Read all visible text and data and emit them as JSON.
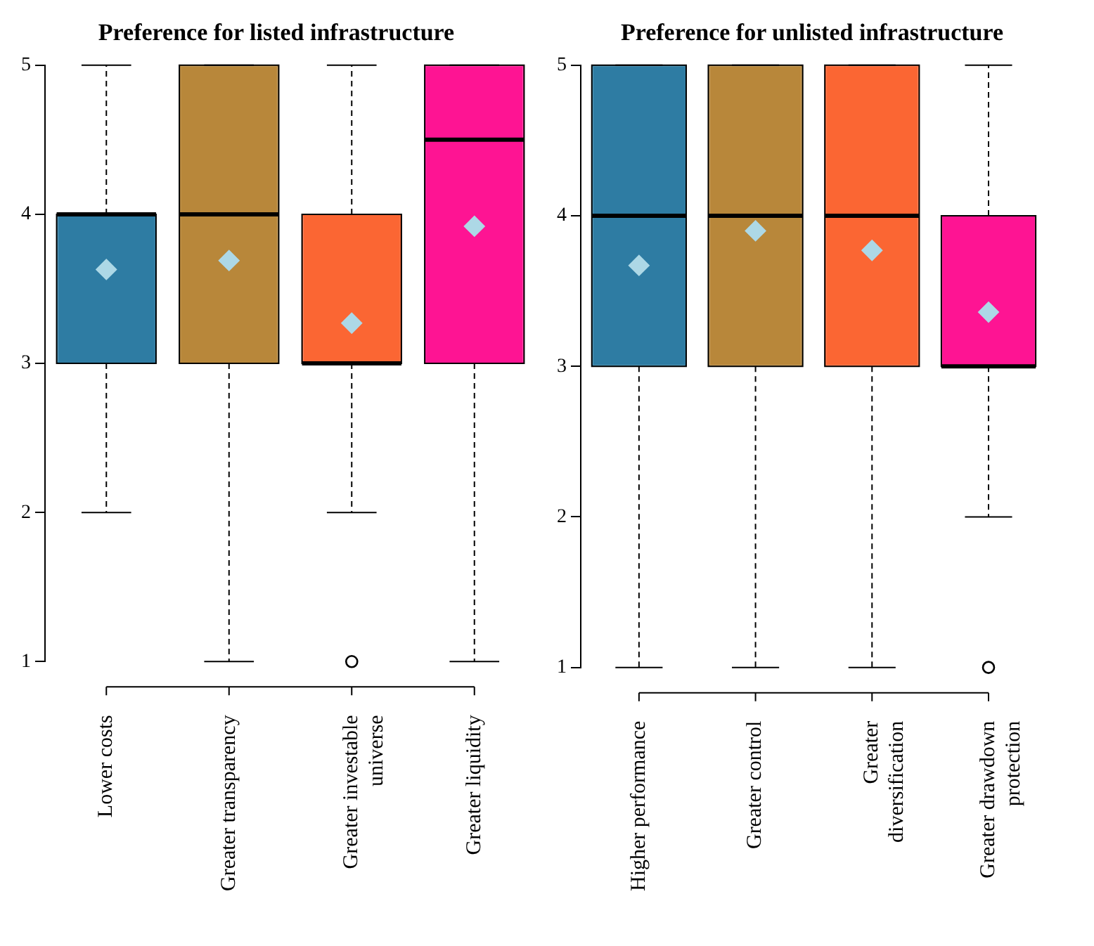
{
  "chart_data": [
    {
      "type": "box",
      "title": "Preference for listed infrastructure",
      "categories": [
        "Lower costs",
        "Greater transparency",
        "Greater investable universe",
        "Greater liquidity"
      ],
      "colors": [
        "#2e7ca3",
        "#b8873a",
        "#fb6633",
        "#fe1493"
      ],
      "boxes": [
        {
          "low": 2,
          "q1": 3,
          "median": 4,
          "q3": 4,
          "high": 5,
          "mean": 3.63
        },
        {
          "low": 1,
          "q1": 3,
          "median": 4,
          "q3": 5,
          "high": 5,
          "mean": 3.69
        },
        {
          "low": 2,
          "q1": 3,
          "median": 3,
          "q3": 4,
          "high": 5,
          "mean": 3.27,
          "outliers": [
            1
          ]
        },
        {
          "low": 1,
          "q1": 3,
          "median": 4.5,
          "q3": 5,
          "high": 5,
          "mean": 3.92
        }
      ],
      "ylim": [
        1,
        5
      ],
      "yticks": [
        1,
        2,
        3,
        4,
        5
      ],
      "grid": false
    },
    {
      "type": "box",
      "title": "Preference for unlisted infrastructure",
      "categories": [
        "Higher performance",
        "Greater control",
        "Greater diversification",
        "Greater drawdown protection"
      ],
      "colors": [
        "#2e7ca3",
        "#b8873a",
        "#fb6633",
        "#fe1493"
      ],
      "boxes": [
        {
          "low": 1,
          "q1": 3,
          "median": 4,
          "q3": 5,
          "high": 5,
          "mean": 3.67
        },
        {
          "low": 1,
          "q1": 3,
          "median": 4,
          "q3": 5,
          "high": 5,
          "mean": 3.9
        },
        {
          "low": 1,
          "q1": 3,
          "median": 4,
          "q3": 5,
          "high": 5,
          "mean": 3.77
        },
        {
          "low": 2,
          "q1": 3,
          "median": 3,
          "q3": 4,
          "high": 5,
          "mean": 3.36,
          "outliers": [
            1
          ]
        }
      ],
      "ylim": [
        1,
        5
      ],
      "yticks": [
        1,
        2,
        3,
        4,
        5
      ],
      "grid": false
    }
  ]
}
